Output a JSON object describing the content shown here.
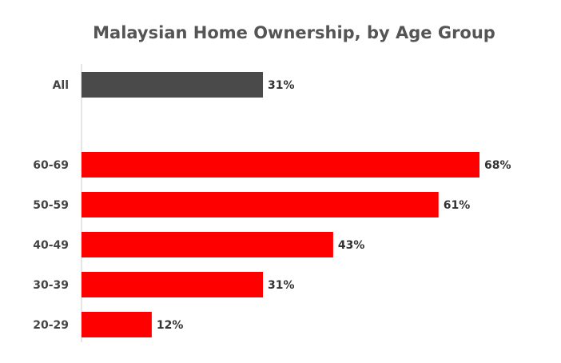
{
  "chart_data": {
    "type": "bar",
    "orientation": "horizontal",
    "title": "Malaysian Home Ownership, by Age Group",
    "xlabel": "",
    "ylabel": "",
    "xlim": [
      0,
      68
    ],
    "grid": false,
    "categories": [
      "All",
      "60-69",
      "50-59",
      "40-49",
      "30-39",
      "20-29"
    ],
    "values": [
      31,
      68,
      61,
      43,
      31,
      12
    ],
    "value_labels": [
      "31%",
      "68%",
      "61%",
      "43%",
      "31%",
      "12%"
    ],
    "colors": [
      "#4a4a4a",
      "#ff0000",
      "#ff0000",
      "#ff0000",
      "#ff0000",
      "#ff0000"
    ]
  }
}
